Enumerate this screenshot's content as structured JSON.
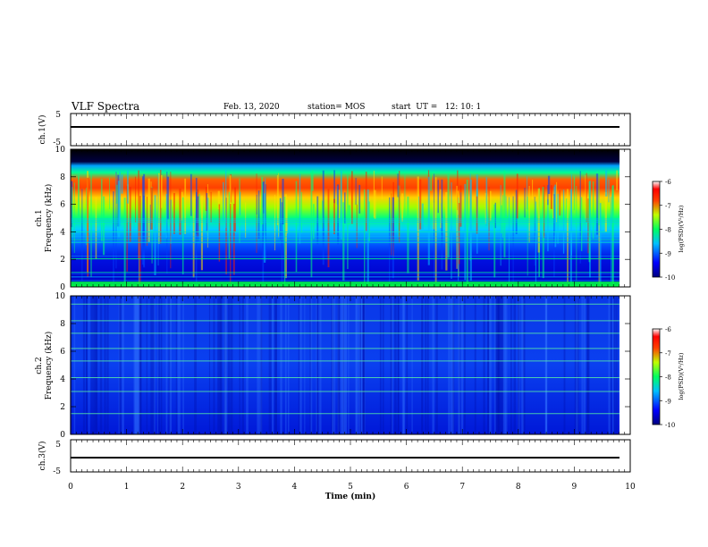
{
  "header": {
    "title": "VLF Spectra",
    "date": "Feb. 13, 2020",
    "station": "station= MOS",
    "start": "start  UT =   12: 10: 1"
  },
  "chart_data": [
    {
      "type": "line",
      "panel": "ch1-voltage",
      "ylabel": "ch.1(V)",
      "ylim": [
        -5,
        5
      ],
      "yticks": [
        "5",
        "-5"
      ],
      "x": [
        0,
        9.8
      ],
      "values": [
        -1,
        -1
      ]
    },
    {
      "type": "heatmap",
      "panel": "ch1-spectrogram",
      "ylabel_line1": "ch.1",
      "ylabel_line2": "Frequency  (kHz)",
      "ylim": [
        0,
        10
      ],
      "yticks": [
        "0",
        "2",
        "4",
        "6",
        "8",
        "10"
      ],
      "colorbar": {
        "label": "log(PSD)(V²/Hz)",
        "range": [
          -10,
          -6
        ],
        "ticks": [
          "-6",
          "-7",
          "-8",
          "-9",
          "-10"
        ]
      },
      "band_kHz": [
        [
          0.3,
          9.0
        ],
        [
          6.0,
          7.5
        ]
      ],
      "colors": {
        "low": "#0000a8",
        "mid": "#00ff80",
        "high": "#ff2000",
        "top": "#000000"
      }
    },
    {
      "type": "heatmap",
      "panel": "ch2-spectrogram",
      "ylabel_line1": "ch.2",
      "ylabel_line2": "Frequency  (kHz)",
      "ylim": [
        0,
        10
      ],
      "yticks": [
        "0",
        "2",
        "4",
        "6",
        "8",
        "10"
      ],
      "colorbar": {
        "label": "log(PSD)(V²/Hz)",
        "range": [
          -10,
          -6
        ],
        "ticks": [
          "-6",
          "-7",
          "-8",
          "-9",
          "-10"
        ]
      },
      "lines_kHz": [
        1.5,
        3.1,
        4.1,
        5.3,
        6.2,
        7.3,
        8.2,
        9.4
      ],
      "colors": {
        "low": "#0000c0",
        "mid": "#1a50ff",
        "line": "#60ffa0"
      }
    },
    {
      "type": "line",
      "panel": "ch3-voltage",
      "ylabel": "ch.3(V)",
      "ylim": [
        -5,
        5
      ],
      "yticks": [
        "5",
        "-5"
      ],
      "x": [
        0,
        9.8
      ],
      "values": [
        -1.5,
        -1.5
      ]
    }
  ],
  "xaxis": {
    "label": "Time  (min)",
    "range": [
      0,
      10
    ],
    "ticks": [
      "0",
      "1",
      "2",
      "3",
      "4",
      "5",
      "6",
      "7",
      "8",
      "9",
      "10"
    ]
  }
}
